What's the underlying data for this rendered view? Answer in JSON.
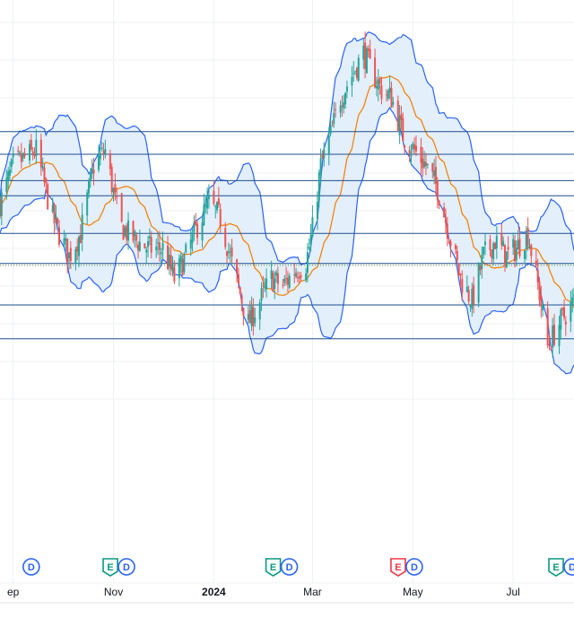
{
  "colors": {
    "up": "#26a69a",
    "down": "#ef5350",
    "band": "#2962ff",
    "band_fill": "#e3effb",
    "sma": "#f57c00",
    "hline": "#1e4f8c",
    "dotted": "#5d8a2b",
    "grid": "#eef0f3",
    "earnings_green": "#089981",
    "earnings_red": "#f23645",
    "dividend": "#2962ff"
  },
  "chart_data": {
    "type": "candlestick",
    "indicators": [
      "Bollinger Bands",
      "SMA (basis)"
    ],
    "x_axis": {
      "ticks": [
        {
          "label": "ep",
          "date": "2023-09-01"
        },
        {
          "label": "Nov",
          "date": "2023-11-01"
        },
        {
          "label": "2024",
          "date": "2024-01-01",
          "bold": true
        },
        {
          "label": "Mar",
          "date": "2024-03-01"
        },
        {
          "label": "May",
          "date": "2024-05-01"
        },
        {
          "label": "Jul",
          "date": "2024-07-01"
        }
      ],
      "range": [
        "2023-08-24",
        "2024-08-07"
      ]
    },
    "y_axis": {
      "range": [
        0,
        100
      ],
      "grid": true,
      "labels_visible": false
    },
    "close_path": [
      [
        "2023-08-24",
        52
      ],
      [
        "2023-09-01",
        62
      ],
      [
        "2023-09-15",
        66
      ],
      [
        "2023-09-25",
        48
      ],
      [
        "2023-10-05",
        38
      ],
      [
        "2023-10-12",
        44
      ],
      [
        "2023-10-20",
        62
      ],
      [
        "2023-10-27",
        66
      ],
      [
        "2023-11-05",
        46
      ],
      [
        "2023-11-15",
        42
      ],
      [
        "2023-11-22",
        40
      ],
      [
        "2023-12-01",
        40
      ],
      [
        "2023-12-08",
        32
      ],
      [
        "2023-12-15",
        38
      ],
      [
        "2023-12-22",
        46
      ],
      [
        "2023-12-29",
        52
      ],
      [
        "2024-01-05",
        48
      ],
      [
        "2024-01-12",
        36
      ],
      [
        "2024-01-17",
        28
      ],
      [
        "2024-01-22",
        20
      ],
      [
        "2024-01-29",
        26
      ],
      [
        "2024-02-05",
        32
      ],
      [
        "2024-02-12",
        30
      ],
      [
        "2024-02-19",
        34
      ],
      [
        "2024-02-26",
        36
      ],
      [
        "2024-03-01",
        45
      ],
      [
        "2024-03-06",
        62
      ],
      [
        "2024-03-12",
        70
      ],
      [
        "2024-03-18",
        80
      ],
      [
        "2024-03-25",
        86
      ],
      [
        "2024-04-01",
        92
      ],
      [
        "2024-04-05",
        88
      ],
      [
        "2024-04-12",
        82
      ],
      [
        "2024-04-18",
        80
      ],
      [
        "2024-04-25",
        70
      ],
      [
        "2024-05-02",
        66
      ],
      [
        "2024-05-09",
        62
      ],
      [
        "2024-05-16",
        56
      ],
      [
        "2024-05-23",
        44
      ],
      [
        "2024-05-30",
        32
      ],
      [
        "2024-06-06",
        26
      ],
      [
        "2024-06-13",
        38
      ],
      [
        "2024-06-20",
        42
      ],
      [
        "2024-06-27",
        38
      ],
      [
        "2024-07-03",
        40
      ],
      [
        "2024-07-10",
        44
      ],
      [
        "2024-07-17",
        28
      ],
      [
        "2024-07-22",
        14
      ],
      [
        "2024-07-29",
        20
      ],
      [
        "2024-08-07",
        26
      ]
    ],
    "horizontal_levels": [
      71,
      65,
      58,
      54,
      44,
      36,
      25,
      16
    ],
    "dotted_level": 35.5,
    "event_markers": [
      {
        "date": "2023-09-12",
        "events": [
          "D"
        ]
      },
      {
        "date": "2023-11-04",
        "events": [
          "E",
          "D"
        ]
      },
      {
        "date": "2024-02-11",
        "events": [
          "E",
          "D"
        ]
      },
      {
        "date": "2024-04-27",
        "events": [
          "E",
          "D"
        ],
        "earnings_color": "red"
      },
      {
        "date": "2024-08-01",
        "events": [
          "E",
          "D"
        ]
      }
    ]
  }
}
